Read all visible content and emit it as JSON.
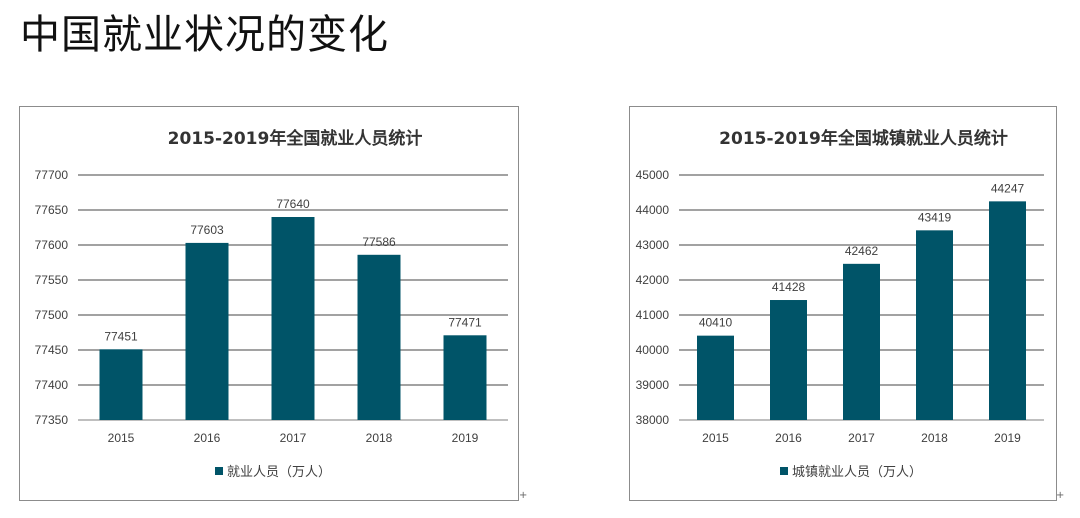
{
  "page": {
    "title": "中国就业状况的变化"
  },
  "chart_data": [
    {
      "type": "bar",
      "title": "2015-2019年全国就业人员统计",
      "categories": [
        "2015",
        "2016",
        "2017",
        "2018",
        "2019"
      ],
      "series": [
        {
          "name": "就业人员（万人）",
          "values": [
            77451,
            77603,
            77640,
            77586,
            77471
          ]
        }
      ],
      "ylim": [
        77350,
        77700
      ],
      "yticks": [
        77350,
        77400,
        77450,
        77500,
        77550,
        77600,
        77650,
        77700
      ],
      "grid": true,
      "legend_position": "bottom",
      "bar_color": "#005468"
    },
    {
      "type": "bar",
      "title": "2015-2019年全国城镇就业人员统计",
      "categories": [
        "2015",
        "2016",
        "2017",
        "2018",
        "2019"
      ],
      "series": [
        {
          "name": "城镇就业人员（万人）",
          "values": [
            40410,
            41428,
            42462,
            43419,
            44247
          ]
        }
      ],
      "ylim": [
        38000,
        45000
      ],
      "yticks": [
        38000,
        39000,
        40000,
        41000,
        42000,
        43000,
        44000,
        45000
      ],
      "grid": true,
      "legend_position": "bottom",
      "bar_color": "#005468"
    }
  ]
}
